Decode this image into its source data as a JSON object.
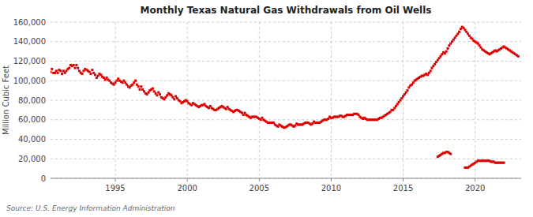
{
  "chart_data": {
    "type": "scatter",
    "title": "Monthly Texas Natural Gas Withdrawals from Oil Wells",
    "ylabel": "Million Cubic Feet",
    "source": "Source: U.S. Energy Information Administration",
    "marker": "square",
    "grid": true,
    "xlim": [
      1990.5,
      2023.2
    ],
    "xticks": [
      1995,
      2000,
      2005,
      2010,
      2015,
      2020
    ],
    "ylim": [
      0,
      160000
    ],
    "yticks": [
      0,
      {
        "value": 20000,
        "label": "20,000"
      },
      {
        "value": 40000,
        "label": "40,000"
      },
      {
        "value": 60000,
        "label": "60,000"
      },
      {
        "value": 80000,
        "label": "80,000"
      },
      {
        "value": 100000,
        "label": "100,000"
      },
      {
        "value": 120000,
        "label": "120,000"
      },
      {
        "value": 140000,
        "label": "140,000"
      },
      {
        "value": 160000,
        "label": "160,000"
      }
    ],
    "series": [
      {
        "color": "#dd0000",
        "x": [
          1990.5,
          1990.6,
          1990.7,
          1990.8,
          1990.9,
          1991.0,
          1991.1,
          1991.2,
          1991.3,
          1991.4,
          1991.5,
          1991.6,
          1991.7,
          1991.8,
          1991.9,
          1992.0,
          1992.1,
          1992.2,
          1992.3,
          1992.4,
          1992.5,
          1992.6,
          1992.7,
          1992.8,
          1992.9,
          1993.0,
          1993.1,
          1993.2,
          1993.3,
          1993.4,
          1993.5,
          1993.6,
          1993.7,
          1993.8,
          1993.9,
          1994.0,
          1994.1,
          1994.2,
          1994.3,
          1994.4,
          1994.5,
          1994.6,
          1994.7,
          1994.8,
          1994.9,
          1995.0,
          1995.1,
          1995.2,
          1995.3,
          1995.4,
          1995.5,
          1995.6,
          1995.7,
          1995.8,
          1995.9,
          1996.0,
          1996.1,
          1996.2,
          1996.3,
          1996.4,
          1996.5,
          1996.6,
          1996.7,
          1996.8,
          1996.9,
          1997.0,
          1997.1,
          1997.2,
          1997.3,
          1997.4,
          1997.5,
          1997.6,
          1997.7,
          1997.8,
          1997.9,
          1998.0,
          1998.1,
          1998.2,
          1998.3,
          1998.4,
          1998.5,
          1998.6,
          1998.7,
          1998.8,
          1998.9,
          1999.0,
          1999.1,
          1999.2,
          1999.3,
          1999.4,
          1999.5,
          1999.6,
          1999.7,
          1999.8,
          1999.9,
          2000.0,
          2000.1,
          2000.2,
          2000.3,
          2000.4,
          2000.5,
          2000.6,
          2000.7,
          2000.8,
          2000.9,
          2001.0,
          2001.1,
          2001.2,
          2001.3,
          2001.4,
          2001.5,
          2001.6,
          2001.7,
          2001.8,
          2001.9,
          2002.0,
          2002.1,
          2002.2,
          2002.3,
          2002.4,
          2002.5,
          2002.6,
          2002.7,
          2002.8,
          2002.9,
          2003.0,
          2003.1,
          2003.2,
          2003.3,
          2003.4,
          2003.5,
          2003.6,
          2003.7,
          2003.8,
          2003.9,
          2004.0,
          2004.1,
          2004.2,
          2004.3,
          2004.4,
          2004.5,
          2004.6,
          2004.7,
          2004.8,
          2004.9,
          2005.0,
          2005.1,
          2005.2,
          2005.3,
          2005.4,
          2005.5,
          2005.6,
          2005.7,
          2005.8,
          2005.9,
          2006.0,
          2006.1,
          2006.2,
          2006.3,
          2006.4,
          2006.5,
          2006.6,
          2006.7,
          2006.8,
          2006.9,
          2007.0,
          2007.1,
          2007.2,
          2007.3,
          2007.4,
          2007.5,
          2007.6,
          2007.7,
          2007.8,
          2007.9,
          2008.0,
          2008.1,
          2008.2,
          2008.3,
          2008.4,
          2008.5,
          2008.6,
          2008.7,
          2008.8,
          2008.9,
          2009.0,
          2009.1,
          2009.2,
          2009.3,
          2009.4,
          2009.5,
          2009.6,
          2009.7,
          2009.8,
          2009.9,
          2010.0,
          2010.1,
          2010.2,
          2010.3,
          2010.4,
          2010.5,
          2010.6,
          2010.7,
          2010.8,
          2010.9,
          2011.0,
          2011.1,
          2011.2,
          2011.3,
          2011.4,
          2011.5,
          2011.6,
          2011.7,
          2011.8,
          2011.9,
          2012.0,
          2012.1,
          2012.2,
          2012.3,
          2012.4,
          2012.5,
          2012.6,
          2012.7,
          2012.8,
          2012.9,
          2013.0,
          2013.1,
          2013.2,
          2013.3,
          2013.4,
          2013.5,
          2013.6,
          2013.7,
          2013.8,
          2013.9,
          2014.0,
          2014.1,
          2014.2,
          2014.3,
          2014.4,
          2014.5,
          2014.6,
          2014.7,
          2014.8,
          2014.9,
          2015.0,
          2015.1,
          2015.2,
          2015.3,
          2015.4,
          2015.5,
          2015.6,
          2015.7,
          2015.8,
          2015.9,
          2016.0,
          2016.1,
          2016.2,
          2016.3,
          2016.4,
          2016.5,
          2016.6,
          2016.7,
          2016.8,
          2016.9,
          2017.0,
          2017.1,
          2017.2,
          2017.3,
          2017.4,
          2017.5,
          2017.6,
          2017.7,
          2017.8,
          2017.9,
          2018.0,
          2018.1,
          2018.2,
          2018.3,
          2018.4,
          2018.5,
          2018.6,
          2018.7,
          2018.8,
          2018.9,
          2019.0,
          2019.1,
          2019.2,
          2019.3,
          2019.4,
          2019.5,
          2019.6,
          2019.7,
          2019.8,
          2019.9,
          2020.0,
          2020.1,
          2020.2,
          2020.3,
          2020.4,
          2020.5,
          2020.6,
          2020.7,
          2020.8,
          2020.9,
          2021.0,
          2021.1,
          2021.2,
          2021.3,
          2021.4,
          2021.5,
          2021.6,
          2021.7,
          2021.8,
          2021.9,
          2022.0,
          2022.1,
          2022.2,
          2022.3,
          2022.4,
          2022.5,
          2022.6,
          2022.7,
          2022.8,
          2022.9,
          2023.0
        ],
        "values": [
          109000,
          112000,
          108000,
          108000,
          110000,
          108000,
          111000,
          110000,
          107000,
          110000,
          108000,
          110000,
          112000,
          113000,
          116000,
          115000,
          116000,
          113000,
          116000,
          113000,
          110000,
          108000,
          107000,
          110000,
          112000,
          111000,
          110000,
          109000,
          107000,
          111000,
          108000,
          106000,
          103000,
          105000,
          107000,
          106000,
          104000,
          103000,
          101000,
          103000,
          101000,
          100000,
          98000,
          97000,
          96000,
          98000,
          100000,
          102000,
          100000,
          99000,
          98000,
          100000,
          98000,
          96000,
          94000,
          93000,
          95000,
          96000,
          98000,
          100000,
          96000,
          94000,
          91000,
          94000,
          91000,
          89000,
          87000,
          86000,
          88000,
          90000,
          91000,
          92000,
          89000,
          87000,
          85000,
          88000,
          86000,
          83000,
          82000,
          81000,
          83000,
          85000,
          87000,
          86000,
          85000,
          83000,
          81000,
          84000,
          82000,
          80000,
          79000,
          77000,
          78000,
          79000,
          80000,
          79000,
          77000,
          76000,
          75000,
          77000,
          76000,
          75000,
          74000,
          73000,
          74000,
          75000,
          75000,
          76000,
          74000,
          73000,
          72000,
          74000,
          72000,
          71000,
          70000,
          70000,
          71000,
          72000,
          73000,
          74000,
          73000,
          72000,
          71000,
          73000,
          71000,
          70000,
          69000,
          68000,
          69000,
          70000,
          70000,
          69000,
          68000,
          67000,
          65000,
          67000,
          65000,
          64000,
          63000,
          62000,
          63000,
          63000,
          63000,
          63000,
          62000,
          61000,
          60000,
          62000,
          60000,
          59000,
          58000,
          57000,
          57000,
          57000,
          57000,
          57000,
          55000,
          54000,
          53000,
          55000,
          54000,
          53000,
          52000,
          52000,
          53000,
          54000,
          55000,
          55000,
          54000,
          53000,
          54000,
          56000,
          55000,
          55000,
          55000,
          55000,
          56000,
          57000,
          57000,
          57000,
          56000,
          55000,
          56000,
          58000,
          57000,
          57000,
          57000,
          57000,
          58000,
          59000,
          60000,
          60000,
          60000,
          61000,
          63000,
          62000,
          62000,
          63000,
          63000,
          63000,
          63000,
          64000,
          64000,
          63000,
          63000,
          64000,
          65000,
          65000,
          65000,
          65000,
          65000,
          66000,
          66000,
          66000,
          65000,
          63000,
          62000,
          61000,
          62000,
          61000,
          60000,
          60000,
          60000,
          60000,
          60000,
          60000,
          60000,
          60000,
          61000,
          62000,
          62000,
          63000,
          64000,
          65000,
          66000,
          67000,
          68000,
          70000,
          70000,
          72000,
          74000,
          76000,
          78000,
          80000,
          82000,
          84000,
          86000,
          88000,
          90000,
          93000,
          95000,
          96000,
          98000,
          100000,
          101000,
          102000,
          103000,
          104000,
          105000,
          105000,
          106000,
          107000,
          106000,
          108000,
          110000,
          113000,
          115000,
          117000,
          119000,
          121000,
          123000,
          125000,
          127000,
          129000,
          128000,
          130000,
          133000,
          136000,
          138000,
          140000,
          142000,
          144000,
          146000,
          148000,
          150000,
          153000,
          155000,
          154000,
          152000,
          150000,
          148000,
          146000,
          144000,
          143000,
          141000,
          140000,
          139000,
          138000,
          136000,
          134000,
          132000,
          131000,
          130000,
          129000,
          128000,
          127000,
          128000,
          129000,
          130000,
          131000,
          130000,
          131000,
          132000,
          133000,
          134000,
          135000,
          134000,
          133000,
          132000,
          131000,
          130000,
          129000,
          128000,
          127000,
          126000,
          125000
        ]
      },
      {
        "color": "#dd0000",
        "x": [
          2017.4,
          2017.5,
          2017.6,
          2017.7,
          2017.8,
          2017.9,
          2018.0,
          2018.1,
          2018.2,
          2018.3
        ],
        "values": [
          22000,
          23000,
          24000,
          25000,
          26000,
          26000,
          27000,
          27000,
          26000,
          25000
        ]
      },
      {
        "color": "#dd0000",
        "x": [
          2019.3,
          2019.4,
          2019.5,
          2019.6,
          2019.7,
          2019.8,
          2019.9,
          2020.0,
          2020.1,
          2020.2,
          2020.3,
          2020.4,
          2020.5,
          2020.6,
          2020.7,
          2020.8,
          2020.9,
          2021.0,
          2021.1,
          2021.2,
          2021.3,
          2021.4,
          2021.5,
          2021.6,
          2021.7,
          2021.8,
          2021.9,
          2022.0
        ],
        "values": [
          11000,
          11000,
          11000,
          12000,
          13000,
          14000,
          15000,
          16000,
          17000,
          18000,
          18000,
          18000,
          18000,
          18000,
          18000,
          18000,
          18000,
          18000,
          17000,
          17000,
          17000,
          16000,
          16000,
          16000,
          16000,
          16000,
          16000,
          16000
        ]
      }
    ]
  }
}
